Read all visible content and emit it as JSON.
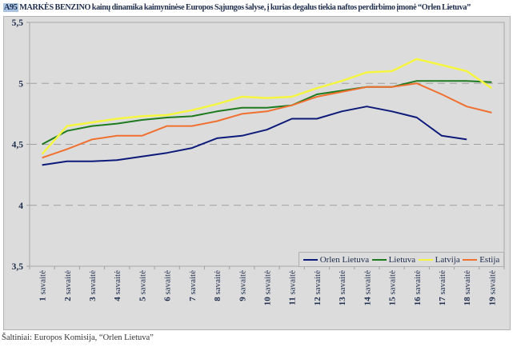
{
  "header": {
    "code": "A95",
    "title": "MARKĖS BENZINO kainų dinamika kaimyninėse Europos Sąjungos šalyse, į kurias degalus tiekia naftos perdirbimo įmonė “Orlen Lietuva”"
  },
  "footer": {
    "source": "Šaltiniai: Europos Komisija, “Orlen Lietuva”"
  },
  "chart_data": {
    "type": "line",
    "title": "MARKĖS BENZINO kainų dinamika kaimyninėse Europos Sąjungos šalyse, į kurias degalus tiekia naftos perdirbimo įmonė “Orlen Lietuva”",
    "xlabel": "",
    "ylabel": "",
    "ylim": [
      3.5,
      5.5
    ],
    "yticks": [
      "3,5",
      "4",
      "4,5",
      "5",
      "5,5"
    ],
    "ytick_values": [
      3.5,
      4,
      4.5,
      5,
      5.5
    ],
    "grid": "horizontal dashed",
    "legend_position": "bottom-right",
    "categories": [
      "1 savaitė",
      "2 savaitė",
      "3 savaitė",
      "4 savaitė",
      "5 savaitė",
      "6 savaitė",
      "7 savaitė",
      "8 savaitė",
      "9 savaitė",
      "10 savaitė",
      "11 savaitė",
      "12 savaitė",
      "13 savaitė",
      "14 savaitė",
      "15 savaitė",
      "16 savaitė",
      "17 savaitė",
      "18 savaitė",
      "19 savaitė"
    ],
    "series": [
      {
        "name": "Orlen Lietuva",
        "color": "#0d1a7a",
        "values": [
          4.33,
          4.36,
          4.36,
          4.37,
          4.4,
          4.43,
          4.47,
          4.55,
          4.57,
          4.62,
          4.71,
          4.71,
          4.77,
          4.81,
          4.77,
          4.72,
          4.57,
          4.54,
          null
        ]
      },
      {
        "name": "Lietuva",
        "color": "#1e7a1e",
        "values": [
          4.5,
          4.61,
          4.65,
          4.67,
          4.7,
          4.72,
          4.73,
          4.77,
          4.8,
          4.8,
          4.82,
          4.91,
          4.94,
          4.97,
          4.97,
          5.02,
          5.02,
          5.02,
          5.01
        ]
      },
      {
        "name": "Latvija",
        "color": "#f5f542",
        "values": [
          4.42,
          4.65,
          4.68,
          4.71,
          4.73,
          4.74,
          4.78,
          4.83,
          4.89,
          4.88,
          4.89,
          4.96,
          5.02,
          5.09,
          5.1,
          5.2,
          5.15,
          5.1,
          4.96
        ]
      },
      {
        "name": "Estija",
        "color": "#f07030",
        "values": [
          4.39,
          4.46,
          4.54,
          4.57,
          4.57,
          4.65,
          4.65,
          4.69,
          4.75,
          4.77,
          4.82,
          4.89,
          4.93,
          4.97,
          4.97,
          5.0,
          4.91,
          4.81,
          4.76
        ]
      }
    ]
  }
}
